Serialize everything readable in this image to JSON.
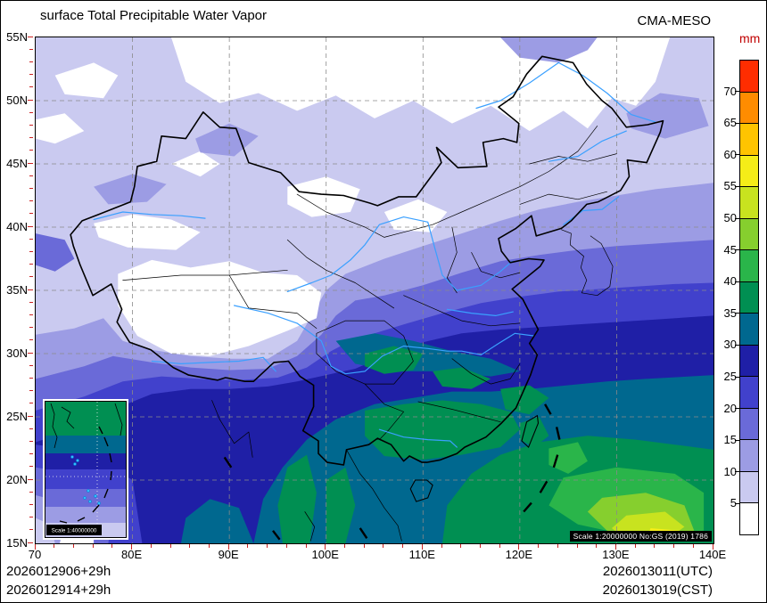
{
  "header": {
    "title": "surface Total Precipitable Water Vapor",
    "model": "CMA-MESO"
  },
  "legend": {
    "unit": "mm",
    "levels": [
      5,
      10,
      15,
      20,
      25,
      30,
      35,
      40,
      45,
      50,
      55,
      60,
      65,
      70
    ],
    "colors": [
      "#ffffff",
      "#cacaf0",
      "#9c9ce4",
      "#6a6ad8",
      "#4141cc",
      "#1f1fa6",
      "#00688f",
      "#008f52",
      "#2ab54a",
      "#86cf2e",
      "#c8e31f",
      "#f5ed18",
      "#ffc400",
      "#ff8c00",
      "#ff2d00"
    ]
  },
  "axes": {
    "x": {
      "tick_values": [
        70,
        80,
        90,
        100,
        110,
        120,
        130,
        140
      ],
      "tick_labels": [
        "70",
        "80E",
        "90E",
        "100E",
        "110E",
        "120E",
        "130E",
        "140E"
      ]
    },
    "y": {
      "tick_values": [
        15,
        20,
        25,
        30,
        35,
        40,
        45,
        50,
        55
      ],
      "tick_labels": [
        "15N",
        "20N",
        "25N",
        "30N",
        "35N",
        "40N",
        "45N",
        "50N",
        "55N"
      ]
    }
  },
  "map": {
    "scale_note": "Scale 1:20000000 No:GS (2019) 1786",
    "inset_scale_note": "Scale 1:40000000"
  },
  "footer": {
    "left_line1": "2026012906+29h",
    "left_line2": "2026012914+29h",
    "right_line1": "2026013011(UTC)",
    "right_line2": "2026013019(CST)"
  }
}
